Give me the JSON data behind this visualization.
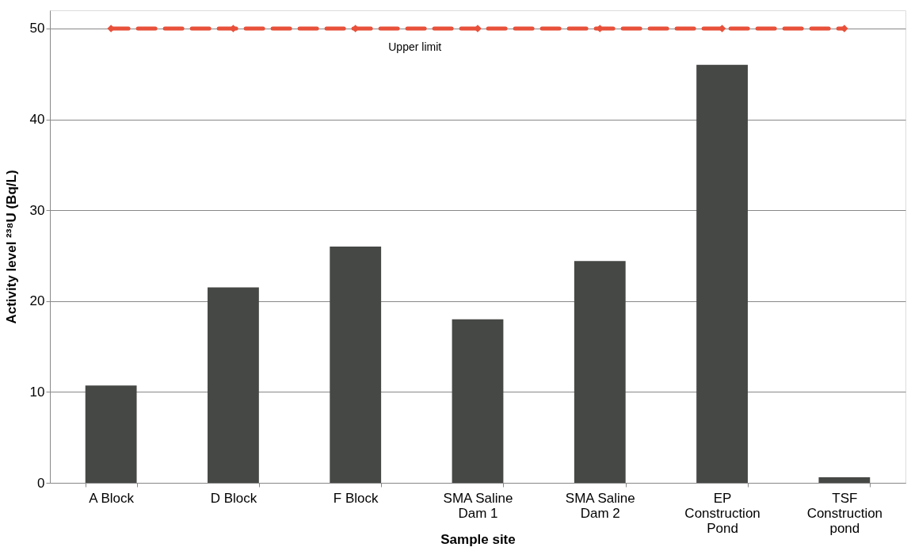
{
  "chart_data": {
    "type": "bar",
    "xlabel": "Sample site",
    "ylabel": "Activity level ²³⁸U (Bq/L)",
    "categories": [
      "A Block",
      "D Block",
      "F Block",
      "SMA Saline Dam 1",
      "SMA Saline Dam 2",
      "EP Construction Pond",
      "TSF Construction pond"
    ],
    "series": [
      {
        "type": "bar",
        "color": "#464845",
        "values": [
          10.7,
          21.5,
          26.0,
          18.0,
          24.4,
          46.0,
          0.6
        ]
      },
      {
        "type": "line",
        "name": "Upper limit",
        "color": "#e8503a",
        "marker": "diamond",
        "line_style": "dashed",
        "values": [
          50,
          50,
          50,
          50,
          50,
          50,
          50
        ]
      }
    ],
    "ylim": [
      0,
      52
    ],
    "yticks": [
      0,
      10,
      20,
      30,
      40,
      50
    ],
    "grid": "y",
    "legend": false
  }
}
